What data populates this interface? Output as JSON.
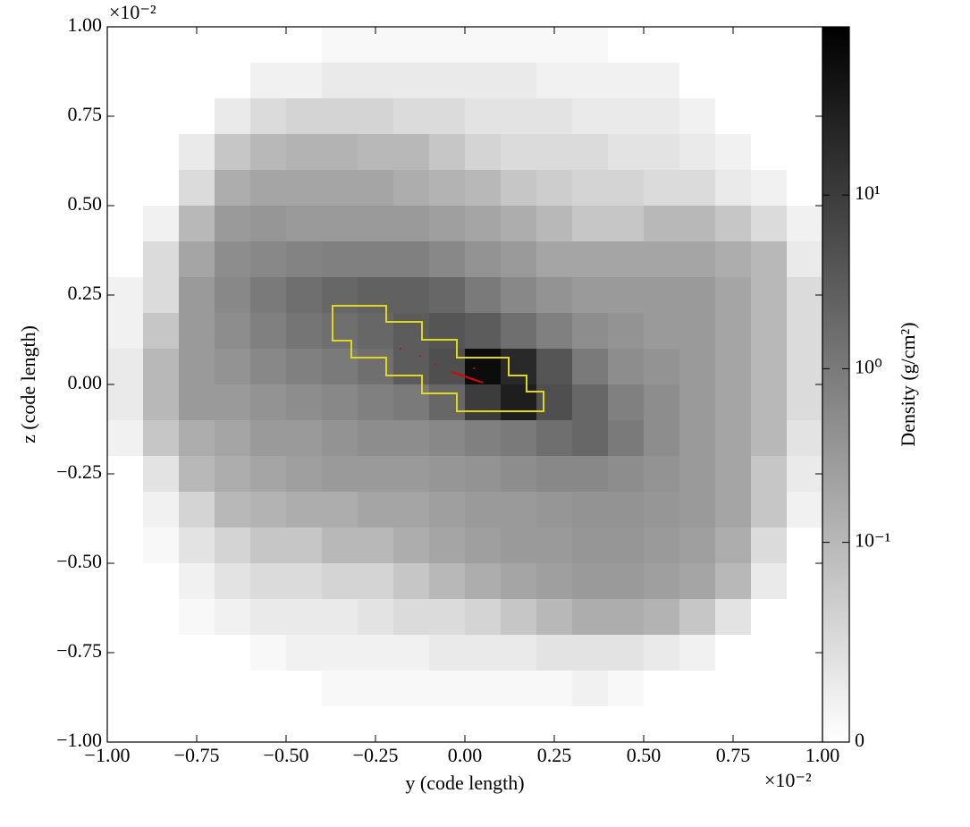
{
  "chart_data": {
    "type": "heatmap",
    "x_label": "y  (code length)",
    "y_label": "z  (code length)",
    "x_offset": "×10⁻²",
    "y_offset": "×10⁻²",
    "xlim": [
      -1.0,
      1.0
    ],
    "ylim": [
      -1.0,
      1.0
    ],
    "xticks": [
      {
        "value": -1.0,
        "label": "−1.00"
      },
      {
        "value": -0.75,
        "label": "−0.75"
      },
      {
        "value": -0.5,
        "label": "−0.50"
      },
      {
        "value": -0.25,
        "label": "−0.25"
      },
      {
        "value": 0,
        "label": "0.00"
      },
      {
        "value": 0.25,
        "label": "0.25"
      },
      {
        "value": 0.5,
        "label": "0.50"
      },
      {
        "value": 0.75,
        "label": "0.75"
      },
      {
        "value": 1.0,
        "label": "1.00"
      }
    ],
    "yticks": [
      {
        "value": -1.0,
        "label": "−1.00"
      },
      {
        "value": -0.75,
        "label": "−0.75"
      },
      {
        "value": -0.5,
        "label": "−0.50"
      },
      {
        "value": -0.25,
        "label": "−0.25"
      },
      {
        "value": 0,
        "label": "0.00"
      },
      {
        "value": 0.25,
        "label": "0.25"
      },
      {
        "value": 0.5,
        "label": "0.50"
      },
      {
        "value": 0.75,
        "label": "0.75"
      },
      {
        "value": 1.0,
        "label": "1.00"
      }
    ],
    "z": [
      [
        0,
        0,
        0,
        0,
        0,
        0,
        0.01,
        0.01,
        0.01,
        0.01,
        0.01,
        0.01,
        0.01,
        0.01,
        0,
        0,
        0,
        0,
        0,
        0
      ],
      [
        0,
        0,
        0,
        0,
        0.02,
        0.02,
        0.03,
        0.03,
        0.03,
        0.03,
        0.03,
        0.03,
        0.02,
        0.02,
        0.02,
        0.02,
        0,
        0,
        0,
        0
      ],
      [
        0,
        0,
        0,
        0.03,
        0.05,
        0.06,
        0.06,
        0.06,
        0.05,
        0.05,
        0.04,
        0.04,
        0.04,
        0.03,
        0.03,
        0.03,
        0.02,
        0,
        0,
        0
      ],
      [
        0,
        0,
        0.03,
        0.08,
        0.1,
        0.12,
        0.12,
        0.1,
        0.1,
        0.08,
        0.06,
        0.05,
        0.05,
        0.05,
        0.04,
        0.04,
        0.03,
        0.02,
        0,
        0
      ],
      [
        0,
        0,
        0.05,
        0.15,
        0.2,
        0.2,
        0.2,
        0.2,
        0.15,
        0.12,
        0.1,
        0.08,
        0.07,
        0.06,
        0.06,
        0.05,
        0.05,
        0.03,
        0.02,
        0
      ],
      [
        0,
        0.02,
        0.1,
        0.3,
        0.35,
        0.3,
        0.3,
        0.3,
        0.3,
        0.25,
        0.2,
        0.15,
        0.1,
        0.08,
        0.08,
        0.1,
        0.1,
        0.08,
        0.05,
        0.02
      ],
      [
        0,
        0.05,
        0.2,
        0.5,
        0.6,
        0.7,
        0.8,
        0.8,
        0.8,
        0.6,
        0.4,
        0.3,
        0.2,
        0.2,
        0.2,
        0.2,
        0.2,
        0.15,
        0.1,
        0.03
      ],
      [
        0.02,
        0.05,
        0.3,
        0.6,
        1,
        1.5,
        2,
        2.5,
        2.5,
        2,
        1,
        0.6,
        0.4,
        0.3,
        0.3,
        0.3,
        0.3,
        0.2,
        0.1,
        0.05
      ],
      [
        0.02,
        0.08,
        0.3,
        0.5,
        0.8,
        1.2,
        1.5,
        2,
        3,
        4,
        3,
        1.5,
        0.8,
        0.5,
        0.4,
        0.3,
        0.3,
        0.2,
        0.1,
        0.05
      ],
      [
        0.03,
        0.1,
        0.3,
        0.4,
        0.6,
        0.8,
        1,
        1.5,
        3,
        5,
        60,
        20,
        4,
        1,
        0.5,
        0.4,
        0.3,
        0.2,
        0.1,
        0.05
      ],
      [
        0.03,
        0.1,
        0.3,
        0.3,
        0.4,
        0.5,
        0.6,
        0.8,
        1,
        2,
        10,
        30,
        5,
        2,
        0.8,
        0.5,
        0.3,
        0.2,
        0.1,
        0.05
      ],
      [
        0.02,
        0.08,
        0.15,
        0.2,
        0.3,
        0.3,
        0.4,
        0.5,
        0.5,
        0.6,
        0.8,
        1,
        1.5,
        2,
        1,
        0.5,
        0.3,
        0.2,
        0.1,
        0.04
      ],
      [
        0,
        0.04,
        0.1,
        0.15,
        0.2,
        0.25,
        0.3,
        0.3,
        0.3,
        0.35,
        0.4,
        0.5,
        0.6,
        0.6,
        0.5,
        0.4,
        0.3,
        0.2,
        0.08,
        0.03
      ],
      [
        0,
        0.02,
        0.06,
        0.1,
        0.12,
        0.15,
        0.15,
        0.2,
        0.2,
        0.25,
        0.3,
        0.3,
        0.35,
        0.4,
        0.4,
        0.35,
        0.3,
        0.2,
        0.08,
        0.02
      ],
      [
        0,
        0.01,
        0.04,
        0.06,
        0.08,
        0.08,
        0.1,
        0.1,
        0.15,
        0.2,
        0.25,
        0.3,
        0.3,
        0.35,
        0.35,
        0.3,
        0.25,
        0.15,
        0.05,
        0
      ],
      [
        0,
        0,
        0.02,
        0.04,
        0.05,
        0.05,
        0.06,
        0.06,
        0.08,
        0.1,
        0.15,
        0.2,
        0.25,
        0.3,
        0.3,
        0.25,
        0.2,
        0.1,
        0.03,
        0
      ],
      [
        0,
        0,
        0.01,
        0.02,
        0.03,
        0.03,
        0.03,
        0.04,
        0.05,
        0.05,
        0.06,
        0.08,
        0.1,
        0.15,
        0.15,
        0.12,
        0.08,
        0.04,
        0,
        0
      ],
      [
        0,
        0,
        0,
        0,
        0.01,
        0.02,
        0.02,
        0.02,
        0.02,
        0.03,
        0.03,
        0.03,
        0.04,
        0.04,
        0.04,
        0.03,
        0.02,
        0,
        0,
        0
      ],
      [
        0,
        0,
        0,
        0,
        0,
        0,
        0.01,
        0.01,
        0.01,
        0.01,
        0.01,
        0.01,
        0.01,
        0.02,
        0.01,
        0,
        0,
        0,
        0,
        0
      ],
      [
        0,
        0,
        0,
        0,
        0,
        0,
        0,
        0,
        0,
        0,
        0,
        0,
        0,
        0,
        0,
        0,
        0,
        0,
        0,
        0
      ]
    ],
    "colorbar": {
      "label": "Density  (g/cm²)",
      "scale": "symlog",
      "linthresh": 0.1,
      "linscale": 1.15,
      "lim": [
        0,
        93
      ],
      "ticks": [
        0,
        {
          "value": 0.1,
          "label": "10⁻¹"
        },
        {
          "value": 1,
          "label": "10⁰"
        },
        {
          "value": 10,
          "label": "10¹"
        }
      ]
    }
  }
}
